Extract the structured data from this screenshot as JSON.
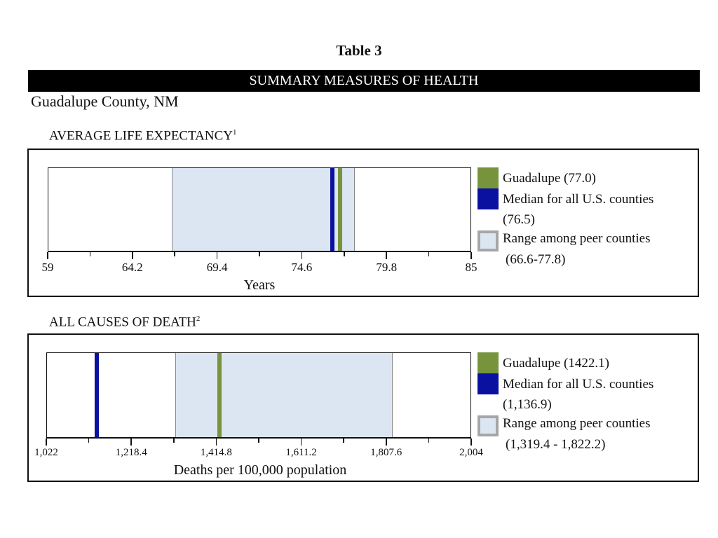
{
  "header": {
    "table_title": "Table 3",
    "banner": "SUMMARY MEASURES OF HEALTH",
    "county": "Guadalupe County, NM"
  },
  "colors": {
    "county": "#77933c",
    "median": "#0a10a0",
    "range_fill": "#dce6f2",
    "range_border": "#a6a6a6"
  },
  "chart_data": [
    {
      "type": "range",
      "title": "AVERAGE LIFE EXPECTANCY",
      "footnote": "1",
      "xlabel": "Years",
      "xlim": [
        59,
        85
      ],
      "ticks": [
        "59",
        "64.2",
        "69.4",
        "74.6",
        "79.8",
        "85"
      ],
      "tick_values": [
        59,
        64.2,
        69.4,
        74.6,
        79.8,
        85
      ],
      "county_value": 77.0,
      "median_value": 76.5,
      "range": [
        66.6,
        77.8
      ],
      "legend": {
        "county": "Guadalupe (77.0)",
        "median_line1": "Median for all U.S. counties",
        "median_line2": "(76.5)",
        "range_line1": "Range among peer counties",
        "range_line2": "(66.6-77.8)"
      }
    },
    {
      "type": "range",
      "title": "ALL CAUSES OF DEATH",
      "footnote": "2",
      "xlabel": "Deaths per 100,000 population",
      "xlim": [
        1022,
        2004
      ],
      "ticks": [
        "1,022",
        "1,218.4",
        "1,414.8",
        "1,611.2",
        "1,807.6",
        "2,004"
      ],
      "tick_values": [
        1022,
        1218.4,
        1414.8,
        1611.2,
        1807.6,
        2004
      ],
      "county_value": 1422.1,
      "median_value": 1136.9,
      "range": [
        1319.4,
        1822.2
      ],
      "legend": {
        "county": "Guadalupe (1422.1)",
        "median_line1": "Median for all U.S. counties",
        "median_line2": "(1,136.9)",
        "range_line1": "Range among peer counties",
        "range_line2": "(1,319.4 - 1,822.2)"
      }
    }
  ]
}
